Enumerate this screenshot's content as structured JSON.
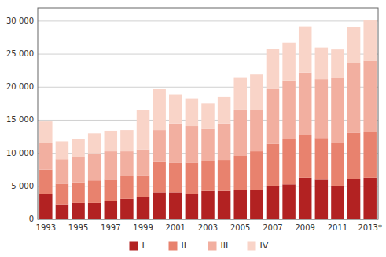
{
  "chart_data": {
    "type": "bar",
    "stacked": true,
    "grid": true,
    "legend": "bottom",
    "categories": [
      "1993",
      null,
      "1995",
      null,
      "1997",
      null,
      "1999",
      null,
      "2001",
      null,
      "2003",
      null,
      "2005",
      null,
      "2007",
      null,
      "2009",
      null,
      "2011",
      null,
      "2013*"
    ],
    "series": [
      {
        "name": "I",
        "color": "#B22222",
        "values": [
          3800,
          2300,
          2500,
          2500,
          2800,
          3100,
          3400,
          4100,
          4100,
          3900,
          4300,
          4300,
          4400,
          4400,
          5100,
          5300,
          6300,
          6000,
          5100,
          6100,
          6300
        ]
      },
      {
        "name": "II",
        "color": "#E8826E",
        "values": [
          3700,
          3100,
          3100,
          3400,
          3200,
          3500,
          3300,
          4600,
          4500,
          4700,
          4500,
          4700,
          5200,
          5900,
          6300,
          6800,
          6500,
          6300,
          6500,
          7000,
          6900
        ]
      },
      {
        "name": "III",
        "color": "#F2AFA0",
        "values": [
          4100,
          3700,
          3800,
          4100,
          4300,
          3700,
          3900,
          4800,
          5900,
          5500,
          5000,
          5500,
          7000,
          6200,
          8400,
          8900,
          9400,
          8900,
          9800,
          10500,
          10800
        ]
      },
      {
        "name": "IV",
        "color": "#F9D4C8",
        "values": [
          3200,
          2700,
          2800,
          3000,
          3100,
          3200,
          5900,
          6200,
          4400,
          4200,
          3700,
          4000,
          4900,
          5400,
          6000,
          5700,
          7000,
          4800,
          4300,
          5500,
          6100
        ]
      }
    ],
    "ylim": [
      0,
      32000
    ],
    "yticks": [
      0,
      {
        "value": 5000,
        "label": "5 000"
      },
      {
        "value": 10000,
        "label": "10 000"
      },
      {
        "value": 15000,
        "label": "15 000"
      },
      {
        "value": 20000,
        "label": "20 000"
      },
      {
        "value": 25000,
        "label": "25 000"
      },
      {
        "value": 30000,
        "label": "30 000"
      }
    ]
  }
}
